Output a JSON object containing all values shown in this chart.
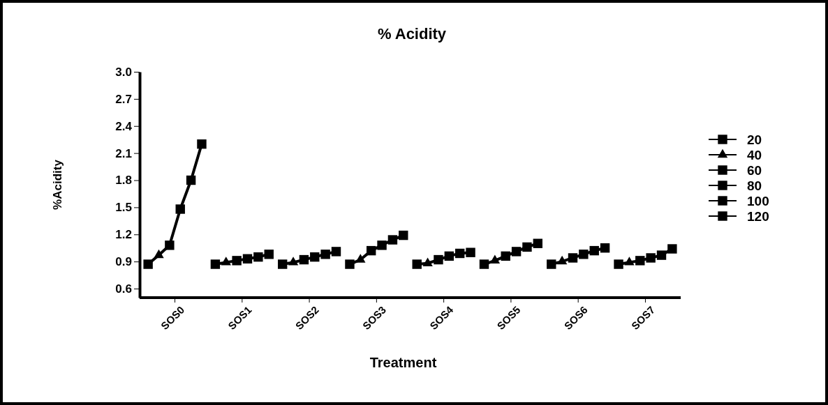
{
  "chart_data": {
    "type": "scatter",
    "title": "% Acidity",
    "xlabel": "Treatment",
    "ylabel": "%Acidity",
    "categories": [
      "SOS0",
      "SOS1",
      "SOS2",
      "SOS3",
      "SOS4",
      "SOS5",
      "SOS6",
      "SOS7"
    ],
    "series": [
      {
        "name": "20",
        "color": "#000000",
        "marker": "square",
        "values": [
          0.87,
          0.87,
          0.87,
          0.87,
          0.87,
          0.87,
          0.87,
          0.87
        ]
      },
      {
        "name": "40",
        "color": "#000000",
        "marker": "triangle",
        "values": [
          0.97,
          0.89,
          0.89,
          0.92,
          0.88,
          0.91,
          0.9,
          0.89
        ]
      },
      {
        "name": "60",
        "color": "#000000",
        "marker": "square",
        "values": [
          1.08,
          0.91,
          0.92,
          1.02,
          0.92,
          0.96,
          0.94,
          0.91
        ]
      },
      {
        "name": "80",
        "color": "#000000",
        "marker": "square",
        "values": [
          1.48,
          0.93,
          0.95,
          1.08,
          0.96,
          1.01,
          0.98,
          0.94
        ]
      },
      {
        "name": "100",
        "color": "#000000",
        "marker": "square",
        "values": [
          1.8,
          0.95,
          0.98,
          1.14,
          0.99,
          1.06,
          1.02,
          0.97
        ]
      },
      {
        "name": "120",
        "color": "#000000",
        "marker": "square",
        "values": [
          2.2,
          0.98,
          1.01,
          1.19,
          1.0,
          1.1,
          1.05,
          1.04
        ]
      }
    ],
    "line_style": "solid",
    "ylim": [
      0.5,
      3.0
    ],
    "yticks": [
      0.6,
      0.9,
      1.2,
      1.5,
      1.8,
      2.1,
      2.4,
      2.7,
      {
        "value": 3,
        "label": "3.0"
      }
    ],
    "legend": "right",
    "grid": false
  }
}
